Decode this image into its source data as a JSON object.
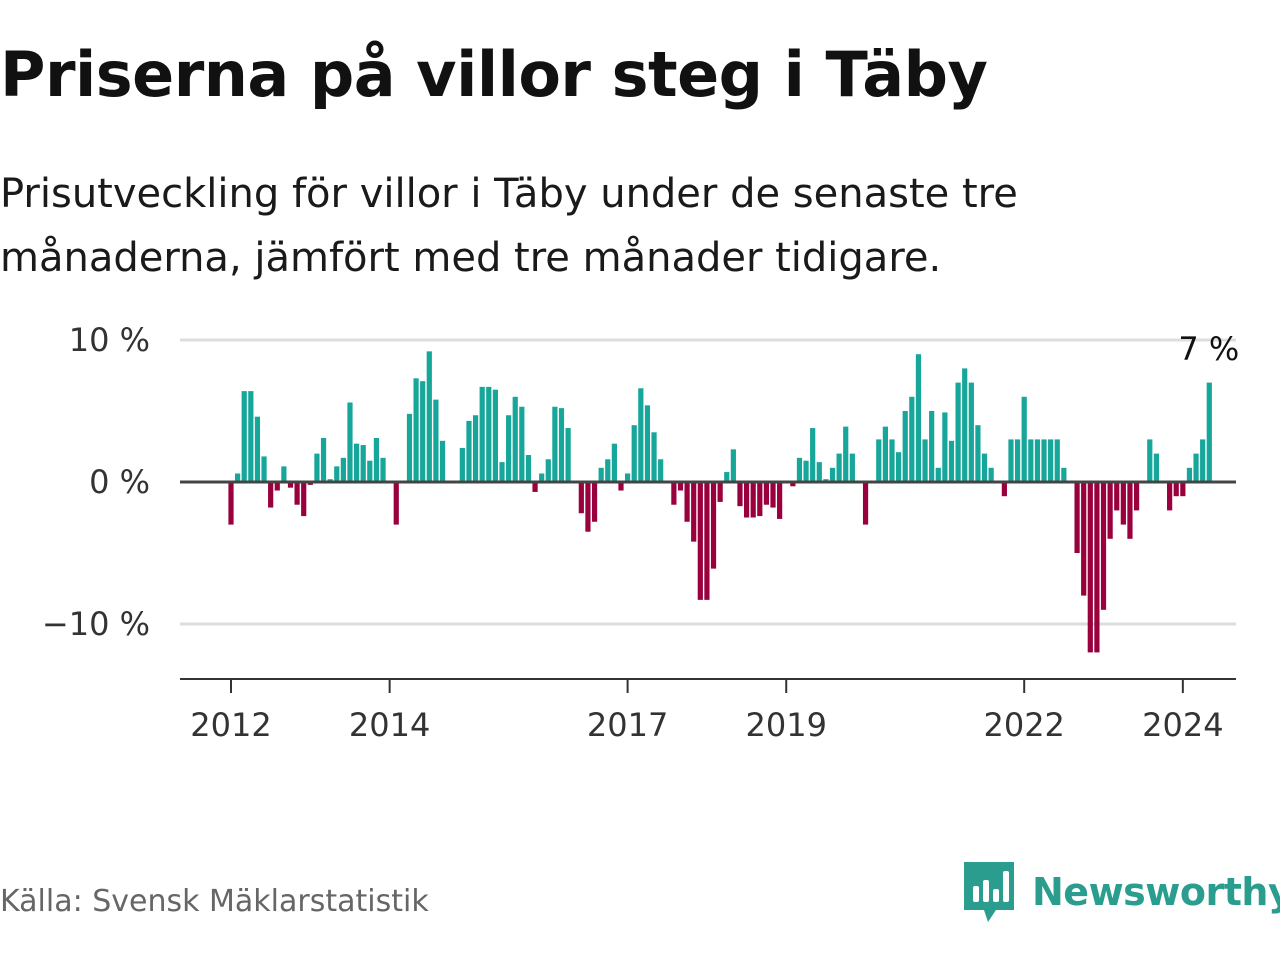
{
  "title": "Priserna på villor steg i Täby",
  "subtitle": "Prisutveckling för villor i Täby under de senaste tre månaderna, jämfört med tre månader tidigare.",
  "source": "Källa: Svensk Mäklarstatistik",
  "brand": "Newsworthy",
  "colors": {
    "positive": "#17a69a",
    "negative": "#99003d",
    "grid": "#dddddd",
    "zero_line": "#444444",
    "brand": "#2a9d8f"
  },
  "chart_data": {
    "type": "bar",
    "title": "Priserna på villor steg i Täby",
    "xlabel": "",
    "ylabel": "",
    "ylim": [
      -13.5,
      10
    ],
    "grid": true,
    "start": {
      "year": 2012,
      "month": 1
    },
    "yticks": [
      {
        "value": 10,
        "label": "10 %"
      },
      {
        "value": 0,
        "label": "0 %"
      },
      {
        "value": -10,
        "label": "−10 %"
      }
    ],
    "xticks": [
      {
        "year": 2012,
        "label": "2012"
      },
      {
        "year": 2014,
        "label": "2014"
      },
      {
        "year": 2017,
        "label": "2017"
      },
      {
        "year": 2019,
        "label": "2019"
      },
      {
        "year": 2022,
        "label": "2022"
      },
      {
        "year": 2024,
        "label": "2024"
      }
    ],
    "annotation": {
      "label": "7 %",
      "value": 7
    },
    "series": [
      {
        "name": "Prisutveckling (%)",
        "values": [
          -3,
          0.6,
          6.4,
          6.4,
          4.6,
          1.8,
          -1.8,
          -0.6,
          1.1,
          -0.4,
          -1.6,
          -2.4,
          -0.2,
          2,
          3.1,
          0.2,
          1.1,
          1.7,
          5.6,
          2.7,
          2.6,
          1.5,
          3.1,
          1.7,
          0,
          -3,
          0,
          4.8,
          7.3,
          7.1,
          9.2,
          5.8,
          2.9,
          0,
          0,
          2.4,
          4.3,
          4.7,
          6.7,
          6.7,
          6.5,
          1.4,
          4.7,
          6,
          5.3,
          1.9,
          -0.7,
          0.6,
          1.6,
          5.3,
          5.2,
          3.8,
          0,
          -2.2,
          -3.5,
          -2.8,
          1,
          1.6,
          2.7,
          -0.6,
          0.6,
          4,
          6.6,
          5.4,
          3.5,
          1.6,
          0,
          -1.6,
          -0.6,
          -2.8,
          -4.2,
          -8.3,
          -8.3,
          -6.1,
          -1.4,
          0.7,
          2.3,
          -1.7,
          -2.5,
          -2.5,
          -2.4,
          -1.6,
          -1.8,
          -2.6,
          0,
          -0.3,
          1.7,
          1.5,
          3.8,
          1.4,
          0.2,
          1,
          2,
          3.9,
          2,
          0,
          -3,
          0,
          3,
          3.9,
          3,
          2.1,
          5,
          6,
          9,
          3,
          5,
          1,
          4.9,
          2.9,
          7,
          8,
          7,
          4,
          2,
          1,
          0,
          -1,
          3,
          3,
          6,
          3,
          3,
          3,
          3,
          3,
          1,
          0,
          -5,
          -8,
          -12,
          -12,
          -9,
          -4,
          -2,
          -3,
          -4,
          -2,
          0,
          3,
          2,
          0,
          -2,
          -1,
          -1,
          1,
          2,
          3,
          7
        ]
      }
    ]
  }
}
